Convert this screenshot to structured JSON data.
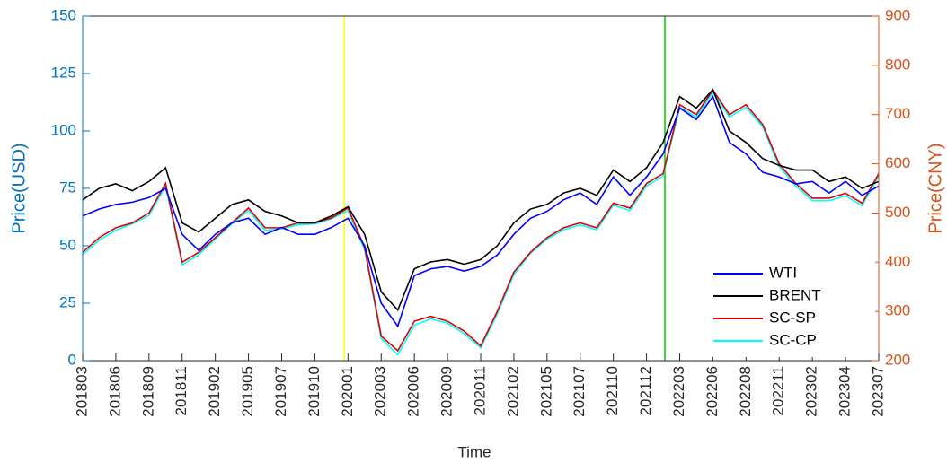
{
  "chart_data": {
    "type": "line",
    "x_label": "Time",
    "y_label": "Price(USD)",
    "y2_label": "Price(CNY)",
    "categories": [
      "201803",
      null,
      "201806",
      null,
      "201809",
      null,
      "201811",
      null,
      "201902",
      null,
      "201905",
      null,
      "201907",
      null,
      "201910",
      null,
      "202001",
      null,
      "202003",
      null,
      "202006",
      null,
      "202009",
      null,
      "202011",
      null,
      "202102",
      null,
      "202105",
      null,
      "202107",
      null,
      "202110",
      null,
      "202112",
      null,
      "202203",
      null,
      "202206",
      null,
      "202208",
      null,
      "202211",
      null,
      "202302",
      null,
      "202304",
      null,
      "202307"
    ],
    "series": [
      {
        "name": "WTI",
        "color": "#0000ff",
        "values": [
          63,
          66,
          68,
          69,
          71,
          75,
          55,
          48,
          55,
          60,
          62,
          55,
          58,
          55,
          55,
          58,
          62,
          50,
          25,
          15,
          37,
          40,
          41,
          39,
          41,
          46,
          55,
          62,
          65,
          70,
          73,
          68,
          80,
          72,
          80,
          90,
          110,
          105,
          115,
          95,
          90,
          82,
          80,
          77,
          78,
          73,
          78,
          72,
          76
        ]
      },
      {
        "name": "BRENT",
        "color": "#000000",
        "values": [
          70,
          75,
          77,
          74,
          78,
          84,
          60,
          56,
          62,
          68,
          70,
          65,
          63,
          60,
          60,
          63,
          67,
          55,
          30,
          22,
          40,
          43,
          44,
          42,
          44,
          50,
          60,
          66,
          68,
          73,
          75,
          72,
          83,
          78,
          84,
          95,
          115,
          110,
          118,
          100,
          95,
          88,
          85,
          83,
          83,
          78,
          80,
          75,
          78
        ]
      },
      {
        "name": "SC-SP",
        "color": "#e00000",
        "axis": "y2",
        "values": [
          420,
          450,
          470,
          480,
          500,
          560,
          400,
          420,
          450,
          480,
          510,
          470,
          470,
          480,
          480,
          490,
          510,
          430,
          250,
          220,
          280,
          290,
          280,
          260,
          230,
          300,
          380,
          420,
          450,
          470,
          480,
          470,
          520,
          510,
          560,
          580,
          720,
          700,
          750,
          700,
          720,
          680,
          600,
          560,
          530,
          530,
          540,
          520,
          580
        ]
      },
      {
        "name": "SC-CP",
        "color": "#00ffff",
        "axis": "y2",
        "values": [
          415,
          445,
          465,
          478,
          495,
          555,
          395,
          415,
          447,
          478,
          505,
          465,
          468,
          476,
          478,
          488,
          505,
          425,
          245,
          212,
          272,
          285,
          276,
          255,
          226,
          295,
          375,
          418,
          447,
          466,
          476,
          466,
          516,
          505,
          555,
          575,
          715,
          695,
          745,
          695,
          715,
          675,
          595,
          555,
          525,
          525,
          535,
          515,
          575
        ]
      }
    ],
    "ylim": [
      0,
      150
    ],
    "yticks": [
      0,
      25,
      50,
      75,
      100,
      125,
      150
    ],
    "y2lim": [
      200,
      900
    ],
    "y2ticks": [
      200,
      300,
      400,
      500,
      600,
      700,
      800,
      900
    ],
    "legend": "lower right"
  }
}
